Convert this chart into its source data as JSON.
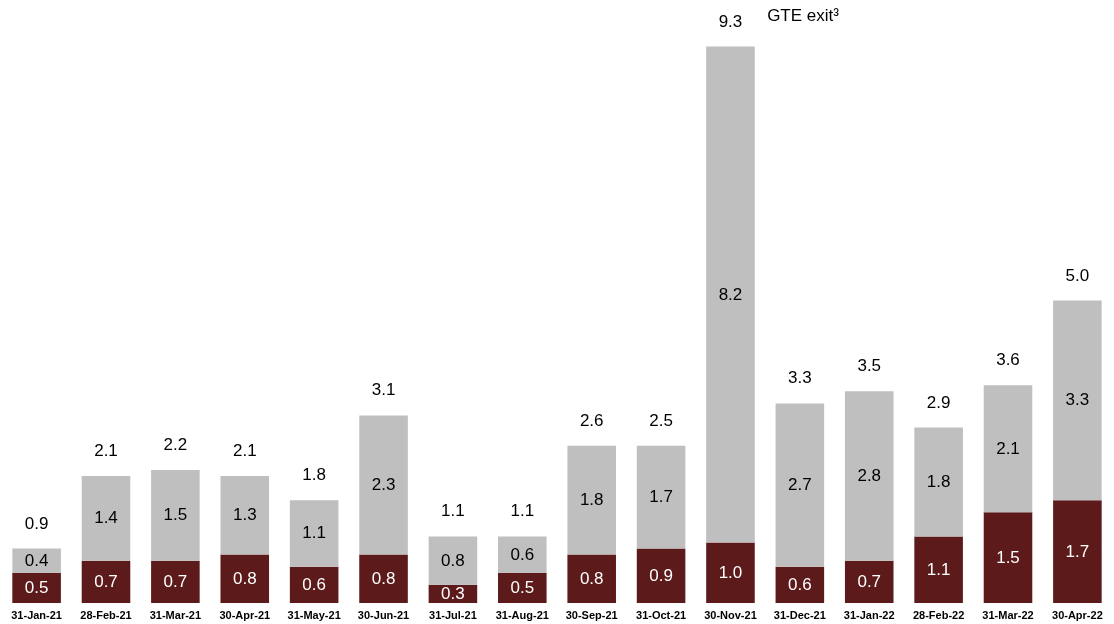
{
  "chart_data": {
    "type": "bar",
    "stacked": true,
    "legend": false,
    "categories": [
      "31-Jan-21",
      "28-Feb-21",
      "31-Mar-21",
      "30-Apr-21",
      "31-May-21",
      "30-Jun-21",
      "31-Jul-21",
      "31-Aug-21",
      "30-Sep-21",
      "31-Oct-21",
      "30-Nov-21",
      "31-Dec-21",
      "31-Jan-22",
      "28-Feb-22",
      "31-Mar-22",
      "30-Apr-22"
    ],
    "series": [
      {
        "color": "#5c1a1a",
        "values": [
          0.5,
          0.7,
          0.7,
          0.8,
          0.6,
          0.8,
          0.3,
          0.5,
          0.8,
          0.9,
          1.0,
          0.6,
          0.7,
          1.1,
          1.5,
          1.7
        ],
        "value_labels": [
          "0.5",
          "0.7",
          "0.7",
          "0.8",
          "0.6",
          "0.8",
          "0.3",
          "0.5",
          "0.8",
          "0.9",
          "1.0",
          "0.6",
          "0.7",
          "1.1",
          "1.5",
          "1.7"
        ]
      },
      {
        "color": "#bfbfbf",
        "values": [
          0.4,
          1.4,
          1.5,
          1.3,
          1.1,
          2.3,
          0.8,
          0.6,
          1.8,
          1.7,
          8.2,
          2.7,
          2.8,
          1.8,
          2.1,
          3.3
        ],
        "value_labels": [
          "0.4",
          "1.4",
          "1.5",
          "1.3",
          "1.1",
          "2.3",
          "0.8",
          "0.6",
          "1.8",
          "1.7",
          "8.2",
          "2.7",
          "2.8",
          "1.8",
          "2.1",
          "3.3"
        ]
      }
    ],
    "totals": [
      "0.9",
      "2.1",
      "2.2",
      "2.1",
      "1.8",
      "3.1",
      "1.1",
      "1.1",
      "2.6",
      "2.5",
      "9.3",
      "3.3",
      "3.5",
      "2.9",
      "3.6",
      "5.0"
    ],
    "annotations": [
      "GTE exit³"
    ]
  }
}
